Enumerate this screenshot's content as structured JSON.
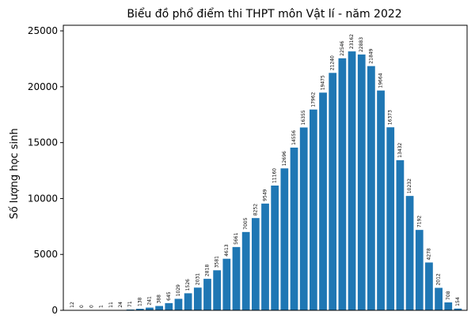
{
  "chart_data": {
    "type": "bar",
    "title": "Biểu đồ phổ điểm thi THPT môn Vật lí - năm 2022",
    "xlabel": "",
    "ylabel": "Số lượng học sinh",
    "ylim": [
      0,
      25500
    ],
    "yticks": [
      0,
      5000,
      10000,
      15000,
      20000,
      25000
    ],
    "grid": false,
    "legend": "none",
    "bar_color": "#1f77b4",
    "values": [
      12,
      0,
      0,
      1,
      11,
      24,
      71,
      138,
      241,
      388,
      645,
      1029,
      1526,
      2031,
      2818,
      3581,
      4613,
      5661,
      7005,
      8252,
      9549,
      11160,
      12696,
      14556,
      16355,
      17962,
      19475,
      21240,
      22546,
      23162,
      22883,
      21849,
      19664,
      16373,
      13432,
      10232,
      7192,
      4278,
      2012,
      708,
      154
    ]
  }
}
